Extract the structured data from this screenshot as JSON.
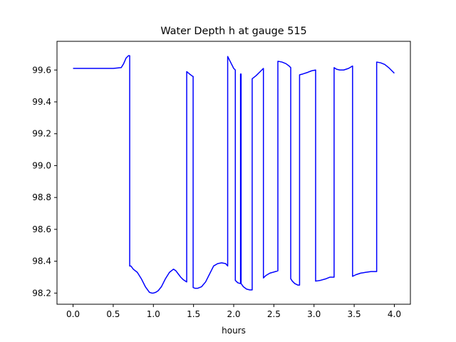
{
  "chart_data": {
    "type": "line",
    "title": "Water Depth h at gauge 515",
    "xlabel": "hours",
    "ylabel": "",
    "xlim": [
      -0.2,
      4.2
    ],
    "ylim": [
      98.13,
      99.78
    ],
    "xticks": [
      0.0,
      0.5,
      1.0,
      1.5,
      2.0,
      2.5,
      3.0,
      3.5,
      4.0
    ],
    "xtick_labels": [
      "0.0",
      "0.5",
      "1.0",
      "1.5",
      "2.0",
      "2.5",
      "3.0",
      "3.5",
      "4.0"
    ],
    "yticks": [
      98.2,
      98.4,
      98.6,
      98.8,
      99.0,
      99.2,
      99.4,
      99.6
    ],
    "ytick_labels": [
      "98.2",
      "98.4",
      "98.6",
      "98.8",
      "99.0",
      "99.2",
      "99.4",
      "99.6"
    ],
    "grid": false,
    "series": [
      {
        "color": "#0000ff",
        "x": [
          0.0,
          0.1,
          0.3,
          0.5,
          0.6,
          0.63,
          0.66,
          0.69,
          0.705,
          0.705,
          0.72,
          0.75,
          0.8,
          0.85,
          0.9,
          0.95,
          0.98,
          1.0,
          1.03,
          1.06,
          1.1,
          1.15,
          1.2,
          1.25,
          1.28,
          1.31,
          1.34,
          1.37,
          1.4,
          1.415,
          1.415,
          1.45,
          1.49,
          1.495,
          1.495,
          1.52,
          1.55,
          1.6,
          1.65,
          1.7,
          1.75,
          1.8,
          1.85,
          1.9,
          1.925,
          1.925,
          1.96,
          2.0,
          2.02,
          2.02,
          2.05,
          2.08,
          2.085,
          2.085,
          2.092,
          2.092,
          2.12,
          2.16,
          2.2,
          2.23,
          2.23,
          2.28,
          2.33,
          2.37,
          2.37,
          2.4,
          2.45,
          2.52,
          2.55,
          2.55,
          2.6,
          2.65,
          2.69,
          2.71,
          2.71,
          2.73,
          2.76,
          2.8,
          2.82,
          2.82,
          2.86,
          2.92,
          2.97,
          3.02,
          3.02,
          3.08,
          3.15,
          3.2,
          3.25,
          3.25,
          3.28,
          3.32,
          3.37,
          3.43,
          3.48,
          3.48,
          3.52,
          3.58,
          3.64,
          3.71,
          3.78,
          3.78,
          3.83,
          3.88,
          3.93,
          3.97,
          4.0
        ],
        "y": [
          99.61,
          99.61,
          99.61,
          99.61,
          99.615,
          99.64,
          99.675,
          99.69,
          99.69,
          98.37,
          98.37,
          98.35,
          98.33,
          98.29,
          98.24,
          98.205,
          98.2,
          98.2,
          98.205,
          98.215,
          98.24,
          98.29,
          98.33,
          98.35,
          98.34,
          98.32,
          98.3,
          98.285,
          98.275,
          98.27,
          99.59,
          99.575,
          99.56,
          99.56,
          98.235,
          98.23,
          98.23,
          98.24,
          98.27,
          98.32,
          98.37,
          98.385,
          98.39,
          98.385,
          98.37,
          99.685,
          99.65,
          99.61,
          99.6,
          98.28,
          98.265,
          98.26,
          98.26,
          99.575,
          99.575,
          98.26,
          98.24,
          98.225,
          98.22,
          98.22,
          99.545,
          99.565,
          99.59,
          99.61,
          98.295,
          98.31,
          98.325,
          98.335,
          98.34,
          99.655,
          99.65,
          99.64,
          99.625,
          99.615,
          98.29,
          98.275,
          98.26,
          98.25,
          98.25,
          99.57,
          99.575,
          99.585,
          99.595,
          99.6,
          98.275,
          98.28,
          98.29,
          98.3,
          98.3,
          99.615,
          99.605,
          99.6,
          99.6,
          99.61,
          99.625,
          98.305,
          98.315,
          98.325,
          98.33,
          98.335,
          98.335,
          99.65,
          99.645,
          99.635,
          99.615,
          99.595,
          99.58
        ]
      }
    ]
  }
}
